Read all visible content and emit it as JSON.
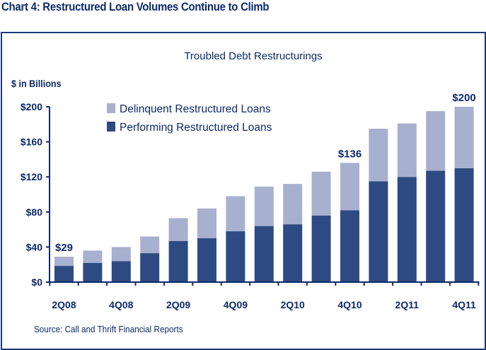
{
  "header": {
    "title": "Chart 4:  Restructured Loan Volumes Continue to Climb"
  },
  "footer": {
    "source": "Source:  Call and Thrift Financial Reports"
  },
  "chart_data": {
    "type": "bar",
    "stacked": true,
    "title": "Troubled Debt Restructurings",
    "ylabel": "$ in Billions",
    "xlabel": "",
    "ylim": [
      0,
      200
    ],
    "yticks": [
      0,
      40,
      80,
      120,
      160,
      200
    ],
    "ytick_labels": [
      "$0",
      "$40",
      "$80",
      "$120",
      "$160",
      "$200"
    ],
    "categories": [
      "2Q08",
      "3Q08",
      "4Q08",
      "1Q09",
      "2Q09",
      "3Q09",
      "4Q09",
      "1Q10",
      "2Q10",
      "3Q10",
      "4Q10",
      "1Q11",
      "2Q11",
      "3Q11",
      "4Q11"
    ],
    "xtick_labels": [
      "2Q08",
      "",
      "4Q08",
      "",
      "2Q09",
      "",
      "4Q09",
      "",
      "2Q10",
      "",
      "4Q10",
      "",
      "2Q11",
      "",
      "4Q11"
    ],
    "series": [
      {
        "name": "Performing Restructured Loans",
        "color": "#2e4a82",
        "values": [
          18.5,
          22,
          24,
          33,
          47,
          50,
          58,
          64,
          66,
          76,
          82,
          115,
          120,
          127,
          130
        ]
      },
      {
        "name": "Delinquent Restructured Loans",
        "color": "#a8b0cf",
        "values": [
          10.5,
          14,
          16,
          19,
          26,
          34,
          40,
          45,
          46,
          50,
          54,
          60,
          61,
          68,
          70
        ]
      }
    ],
    "totals": [
      29,
      36,
      40,
      52,
      73,
      84,
      98,
      109,
      112,
      126,
      136,
      175,
      181,
      195,
      200
    ],
    "annotations": [
      {
        "category": "2Q08",
        "text": "$29"
      },
      {
        "category": "4Q10",
        "text": "$136"
      },
      {
        "category": "4Q11",
        "text": "$200"
      }
    ],
    "legend": {
      "position": "top-left",
      "entries": [
        "Delinquent Restructured Loans",
        "Performing Restructured Loans"
      ]
    },
    "grid": false
  }
}
